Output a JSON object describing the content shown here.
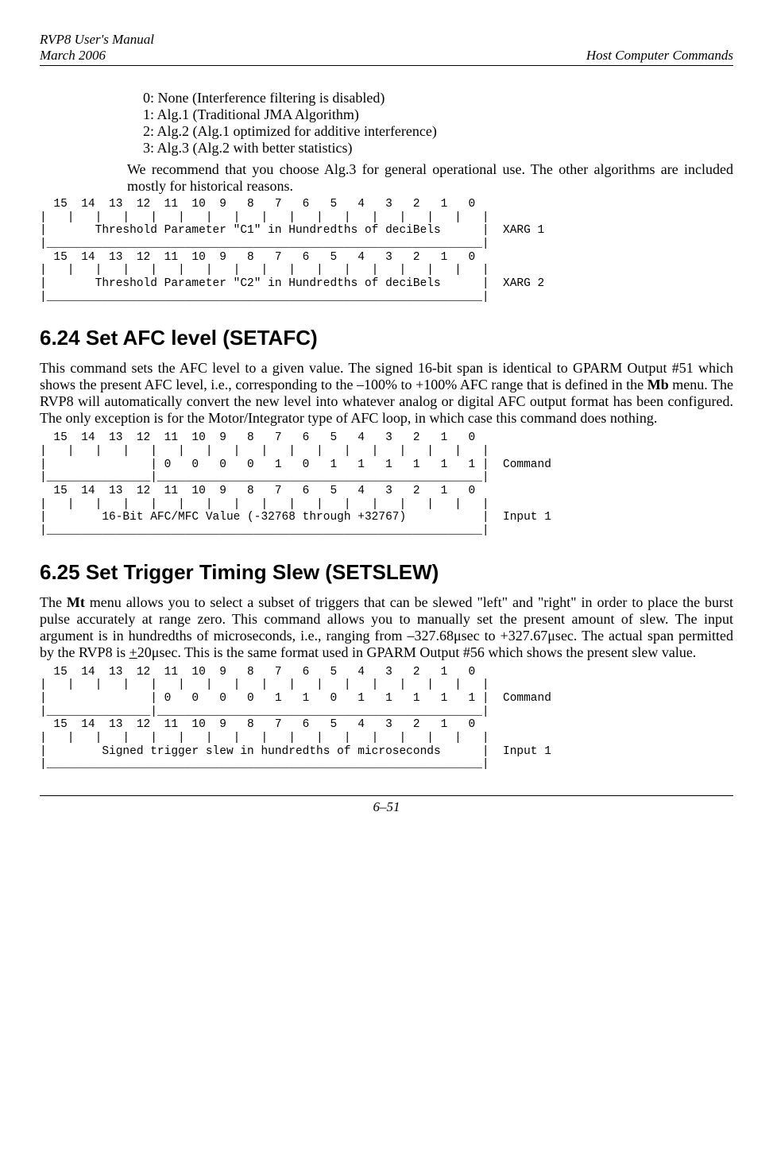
{
  "header": {
    "left_top": "RVP8 User's Manual",
    "left_bottom": "March 2006",
    "right": "Host Computer Commands"
  },
  "intro": {
    "items": [
      "0: None (Interference filtering is disabled)",
      "1: Alg.1 (Traditional JMA Algorithm)",
      "2: Alg.2 (Alg.1 optimized for additive interference)",
      "3: Alg.3 (Alg.2 with better statistics)"
    ],
    "note": "We recommend that you choose Alg.3 for general operational use.  The other algorithms are included mostly for historical reasons."
  },
  "diagram1": {
    "lines": [
      "  15  14  13  12  11  10  9   8   7   6   5   4   3   2   1   0 ",
      "|   |   |   |   |   |   |   |   |   |   |   |   |   |   |   |   |",
      "|       Threshold Parameter \"C1\" in Hundredths of deciBels      |  XARG 1",
      "|_______________________________________________________________|",
      "  15  14  13  12  11  10  9   8   7   6   5   4   3   2   1   0 ",
      "|   |   |   |   |   |   |   |   |   |   |   |   |   |   |   |   |",
      "|       Threshold Parameter \"C2\" in Hundredths of deciBels      |  XARG 2",
      "|_______________________________________________________________|"
    ]
  },
  "section624": {
    "title": "6.24    Set AFC level (SETAFC)",
    "body": "This command sets the AFC level to a given value.  The signed 16-bit span is identical to GPARM Output #51 which shows the present AFC level, i.e., corresponding to the –100% to +100% AFC range that is defined in the Mb menu.  The RVP8 will automatically convert the new level into whatever analog or digital AFC output format has been configured. The only exception is for the Motor/Integrator type of AFC loop, in which case this command does nothing."
  },
  "diagram2": {
    "lines": [
      "  15  14  13  12  11  10  9   8   7   6   5   4   3   2   1   0 ",
      "|   |   |   |   |   |   |   |   |   |   |   |   |   |   |   |   |",
      "|               | 0   0   0   0   1   0   1   1   1   1   1   1 |  Command",
      "|_______________|_______________________________________________|",
      "  15  14  13  12  11  10  9   8   7   6   5   4   3   2   1   0 ",
      "|   |   |   |   |   |   |   |   |   |   |   |   |   |   |   |   |",
      "|        16-Bit AFC/MFC Value (-32768 through +32767)           |  Input 1",
      "|_______________________________________________________________|"
    ]
  },
  "section625": {
    "title": "6.25    Set Trigger Timing Slew (SETSLEW)",
    "body": "The Mt menu allows you to select a subset of triggers that can be slewed \"left\" and \"right\" in order to place the burst pulse accurately at range zero.  This command allows you to manually set the present amount of slew.  The input argument is in hundredths of microseconds, i.e., ranging from –327.68μsec to +327.67μsec.  The actual span permitted by the RVP8 is ±20μsec. This is the same format used in GPARM Output #56 which shows the present slew value."
  },
  "diagram3": {
    "lines": [
      "  15  14  13  12  11  10  9   8   7   6   5   4   3   2   1   0 ",
      "|   |   |   |   |   |   |   |   |   |   |   |   |   |   |   |   |",
      "|               | 0   0   0   0   1   1   0   1   1   1   1   1 |  Command",
      "|_______________|_______________________________________________|",
      "  15  14  13  12  11  10  9   8   7   6   5   4   3   2   1   0 ",
      "|   |   |   |   |   |   |   |   |   |   |   |   |   |   |   |   |",
      "|        Signed trigger slew in hundredths of microseconds      |  Input 1",
      "|_______________________________________________________________|"
    ]
  },
  "footer": {
    "page": "6–51"
  }
}
